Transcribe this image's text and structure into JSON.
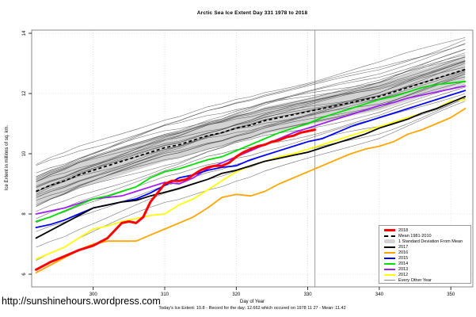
{
  "page": {
    "title": "Arctic Sea Ice Extent Day 331 1978 to 2018",
    "ylabel": "Ice Extent in millions of sq. km.",
    "xlabel": "Day of Year",
    "caption": "Today's Ice Extent: 10.8  - Record for the day: 12.662 which occured on 1978 11 27  - Mean: 11.42",
    "url_watermark": "http://sunshinehours.wordpress.com"
  },
  "chart_data": {
    "type": "line",
    "title": "Arctic Sea Ice Extent Day 331 1978 to 2018",
    "xlabel": "Day of Year",
    "ylabel": "Ice Extent in millions of sq. km.",
    "xlim": [
      291.4,
      353
    ],
    "ylim": [
      5.6,
      14.1
    ],
    "xticks": [
      300,
      310,
      320,
      330,
      340,
      350
    ],
    "yticks": [
      6,
      8,
      10,
      12,
      14
    ],
    "grid": "dotted",
    "legend_position": "bottom-right",
    "marker_day": 331,
    "today_extent": 10.8,
    "record_for_day": 12.662,
    "record_date": "1978 11 27",
    "day_mean": 11.42,
    "x": [
      292,
      294,
      296,
      298,
      300,
      302,
      304,
      306,
      308,
      310,
      312,
      314,
      316,
      318,
      320,
      322,
      324,
      326,
      328,
      330,
      332,
      334,
      336,
      338,
      340,
      342,
      344,
      346,
      348,
      350,
      352
    ],
    "band": {
      "label": "1 Standard Deviation From Mean",
      "halfwidth": 0.45,
      "color": "#d3d3d3"
    },
    "mean_series": {
      "name": "Mean 1981-2010",
      "color": "#000000",
      "style": "dashed",
      "width": 1.8,
      "values": [
        8.75,
        8.95,
        9.1,
        9.3,
        9.45,
        9.6,
        9.75,
        9.9,
        10.05,
        10.2,
        10.3,
        10.45,
        10.6,
        10.7,
        10.85,
        10.95,
        11.1,
        11.2,
        11.3,
        11.4,
        11.5,
        11.6,
        11.7,
        11.8,
        11.9,
        12.05,
        12.2,
        12.35,
        12.5,
        12.65,
        12.8
      ]
    },
    "series": [
      {
        "name": "2012",
        "color": "#ffff00",
        "width": 1.8,
        "values": [
          6.5,
          6.7,
          6.9,
          7.2,
          7.5,
          7.6,
          7.75,
          7.85,
          7.95,
          8.0,
          8.3,
          8.5,
          8.8,
          9.1,
          9.4,
          9.6,
          9.75,
          9.9,
          10.0,
          10.15,
          10.3,
          10.45,
          10.6,
          10.75,
          10.9,
          11.05,
          11.2,
          11.35,
          11.5,
          11.75,
          11.8
        ]
      },
      {
        "name": "2013",
        "color": "#a020f0",
        "width": 1.8,
        "values": [
          8.0,
          8.1,
          8.2,
          8.35,
          8.5,
          8.55,
          8.6,
          8.75,
          8.9,
          9.05,
          9.0,
          9.2,
          9.5,
          9.7,
          9.9,
          10.1,
          10.3,
          10.5,
          10.7,
          10.85,
          11.0,
          11.15,
          11.3,
          11.45,
          11.6,
          11.7,
          11.85,
          11.95,
          12.05,
          12.15,
          12.25
        ]
      },
      {
        "name": "2015",
        "color": "#0000ff",
        "width": 1.8,
        "values": [
          7.55,
          7.65,
          7.8,
          8.0,
          8.2,
          8.3,
          8.4,
          8.5,
          8.7,
          8.95,
          9.2,
          9.3,
          9.45,
          9.55,
          9.6,
          9.8,
          9.95,
          10.1,
          10.25,
          10.4,
          10.5,
          10.7,
          10.9,
          11.05,
          11.2,
          11.35,
          11.5,
          11.65,
          11.8,
          11.95,
          12.1
        ]
      },
      {
        "name": "2014",
        "color": "#00dd00",
        "width": 1.8,
        "values": [
          7.75,
          7.9,
          8.1,
          8.3,
          8.5,
          8.6,
          8.75,
          8.9,
          9.2,
          9.4,
          9.5,
          9.65,
          9.8,
          9.9,
          10.1,
          10.3,
          10.5,
          10.7,
          10.85,
          11.0,
          11.2,
          11.35,
          11.5,
          11.65,
          11.8,
          11.9,
          12.05,
          12.2,
          12.3,
          12.35,
          12.4
        ]
      },
      {
        "name": "2016",
        "color": "#ffa500",
        "width": 1.8,
        "values": [
          6.05,
          6.3,
          6.55,
          6.8,
          7.0,
          7.1,
          7.1,
          7.1,
          7.3,
          7.5,
          7.7,
          7.9,
          8.2,
          8.55,
          8.65,
          8.6,
          8.75,
          9.0,
          9.2,
          9.4,
          9.6,
          9.8,
          10.0,
          10.15,
          10.25,
          10.4,
          10.65,
          10.8,
          11.0,
          11.2,
          11.5
        ]
      },
      {
        "name": "2017",
        "color": "#000000",
        "width": 1.8,
        "values": [
          7.2,
          7.45,
          7.7,
          7.95,
          8.2,
          8.3,
          8.4,
          8.45,
          8.6,
          8.72,
          8.85,
          9.0,
          9.15,
          9.35,
          9.45,
          9.6,
          9.75,
          9.85,
          9.95,
          10.05,
          10.2,
          10.35,
          10.5,
          10.65,
          10.85,
          11.0,
          11.15,
          11.35,
          11.5,
          11.7,
          11.9
        ]
      },
      {
        "name": "2018",
        "color": "#ff0000",
        "width": 3,
        "x": [
          292,
          294,
          296,
          298,
          300,
          302,
          304,
          305,
          306,
          307,
          308,
          309,
          310,
          311,
          312,
          313,
          314,
          315,
          316,
          317,
          318,
          319,
          320,
          321,
          322,
          323,
          324,
          325,
          326,
          327,
          328,
          329,
          330,
          331
        ],
        "values": [
          6.15,
          6.4,
          6.6,
          6.8,
          6.95,
          7.2,
          7.7,
          7.75,
          7.7,
          7.9,
          8.4,
          8.7,
          9.0,
          9.1,
          9.1,
          9.15,
          9.3,
          9.45,
          9.55,
          9.6,
          9.6,
          9.7,
          9.9,
          10.05,
          10.15,
          10.25,
          10.3,
          10.4,
          10.45,
          10.55,
          10.6,
          10.7,
          10.75,
          10.8
        ]
      }
    ],
    "background_years": {
      "label": "Every Other Year",
      "color": "#444444",
      "width": 0.55,
      "opacity": 0.8,
      "offsets_from_mean_start_end": [
        [
          0.85,
          1.1
        ],
        [
          0.75,
          0.95
        ],
        [
          0.6,
          1.0
        ],
        [
          0.55,
          0.8
        ],
        [
          0.5,
          0.65
        ],
        [
          0.45,
          0.55
        ],
        [
          0.4,
          0.6
        ],
        [
          0.35,
          0.45
        ],
        [
          0.3,
          0.5
        ],
        [
          0.25,
          0.35
        ],
        [
          0.2,
          0.4
        ],
        [
          0.15,
          0.25
        ],
        [
          0.1,
          0.3
        ],
        [
          0.05,
          0.15
        ],
        [
          0.0,
          0.2
        ],
        [
          -0.05,
          0.1
        ],
        [
          -0.1,
          0.05
        ],
        [
          -0.15,
          -0.05
        ],
        [
          -0.2,
          0.0
        ],
        [
          -0.25,
          -0.1
        ],
        [
          -0.3,
          -0.15
        ],
        [
          -0.35,
          -0.2
        ],
        [
          -0.45,
          -0.3
        ],
        [
          -0.55,
          -0.35
        ],
        [
          -0.7,
          -0.45
        ],
        [
          -0.9,
          -0.6
        ],
        [
          -1.1,
          -0.75
        ],
        [
          -1.4,
          -0.9
        ],
        [
          -1.8,
          -1.0
        ],
        [
          -2.2,
          -1.15
        ]
      ]
    }
  },
  "legend": {
    "items": [
      {
        "label": "2018",
        "color": "#ff0000",
        "style": "thick"
      },
      {
        "label": "Mean 1981-2010",
        "color": "#000000",
        "style": "dashed"
      },
      {
        "label": "1 Standard Deviation From Mean",
        "color": "#d3d3d3",
        "style": "band"
      },
      {
        "label": "2017",
        "color": "#000000",
        "style": "line"
      },
      {
        "label": "2016",
        "color": "#ffa500",
        "style": "line"
      },
      {
        "label": "2015",
        "color": "#0000ff",
        "style": "line"
      },
      {
        "label": "2014",
        "color": "#00dd00",
        "style": "line"
      },
      {
        "label": "2013",
        "color": "#a020f0",
        "style": "line"
      },
      {
        "label": "2012",
        "color": "#ffff00",
        "style": "line"
      },
      {
        "label": "Every Other Year",
        "color": "#888888",
        "style": "thin"
      }
    ]
  }
}
